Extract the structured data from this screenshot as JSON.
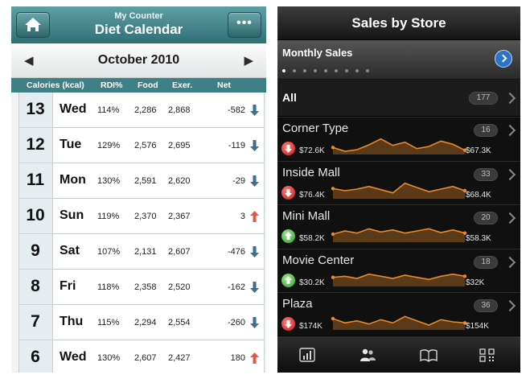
{
  "left_app": {
    "header": {
      "subtitle": "My Counter",
      "title": "Diet Calendar",
      "menu_label": "•••",
      "home_icon": "home-icon"
    },
    "month": {
      "label": "October 2010",
      "prev": "◀",
      "next": "▶"
    },
    "columns": [
      "Calories (kcal)",
      "RDI%",
      "Food",
      "Exer.",
      "Net"
    ],
    "colors": {
      "header": "#3f7f86",
      "down": "#3b6e8c",
      "up": "#e0584a"
    },
    "rows": [
      {
        "date": "13",
        "day": "Wed",
        "rdi": "114%",
        "food": "2,286",
        "exer": "2,868",
        "net": "-582",
        "trend": "down"
      },
      {
        "date": "12",
        "day": "Tue",
        "rdi": "129%",
        "food": "2,576",
        "exer": "2,695",
        "net": "-119",
        "trend": "down"
      },
      {
        "date": "11",
        "day": "Mon",
        "rdi": "130%",
        "food": "2,591",
        "exer": "2,620",
        "net": "-29",
        "trend": "down"
      },
      {
        "date": "10",
        "day": "Sun",
        "rdi": "119%",
        "food": "2,370",
        "exer": "2,367",
        "net": "3",
        "trend": "up"
      },
      {
        "date": "9",
        "day": "Sat",
        "rdi": "107%",
        "food": "2,131",
        "exer": "2,607",
        "net": "-476",
        "trend": "down"
      },
      {
        "date": "8",
        "day": "Fri",
        "rdi": "118%",
        "food": "2,358",
        "exer": "2,520",
        "net": "-162",
        "trend": "down"
      },
      {
        "date": "7",
        "day": "Thu",
        "rdi": "115%",
        "food": "2,294",
        "exer": "2,554",
        "net": "-260",
        "trend": "down"
      },
      {
        "date": "6",
        "day": "Wed",
        "rdi": "130%",
        "food": "2,607",
        "exer": "2,427",
        "net": "180",
        "trend": "up"
      }
    ]
  },
  "right_app": {
    "title": "Sales by Store",
    "monthly": {
      "label": "Monthly Sales",
      "page_count": 9,
      "active_page": 0
    },
    "all": {
      "label": "All",
      "count": "177"
    },
    "colors": {
      "spark": "#e8892b",
      "down": "#d62525",
      "up": "#3aa832"
    },
    "stores": [
      {
        "name": "Corner Type",
        "count": "16",
        "trend": "down",
        "start": "$72.6K",
        "end": "$67.3K",
        "spark": [
          40,
          33,
          36,
          45,
          56,
          44,
          50,
          38,
          42,
          52,
          46,
          35
        ]
      },
      {
        "name": "Inside Mall",
        "count": "33",
        "trend": "down",
        "start": "$76.4K",
        "end": "$68.4K",
        "spark": [
          46,
          42,
          45,
          50,
          44,
          38,
          56,
          48,
          40,
          45,
          50,
          42
        ]
      },
      {
        "name": "Mini Mall",
        "count": "20",
        "trend": "up",
        "start": "$58.2K",
        "end": "$58.3K",
        "spark": [
          42,
          48,
          44,
          52,
          46,
          50,
          44,
          48,
          52,
          45,
          50,
          44
        ]
      },
      {
        "name": "Movie Center",
        "count": "18",
        "trend": "up",
        "start": "$30.2K",
        "end": "$32K",
        "spark": [
          44,
          46,
          42,
          50,
          46,
          42,
          48,
          44,
          40,
          46,
          50,
          46
        ]
      },
      {
        "name": "Plaza",
        "count": "36",
        "trend": "down",
        "start": "$174K",
        "end": "$154K",
        "spark": [
          48,
          40,
          44,
          38,
          46,
          40,
          52,
          44,
          36,
          46,
          42,
          40
        ]
      }
    ],
    "tabs": [
      {
        "icon": "bar-chart-icon"
      },
      {
        "icon": "people-icon"
      },
      {
        "icon": "book-icon"
      },
      {
        "icon": "barcode-icon"
      }
    ]
  }
}
